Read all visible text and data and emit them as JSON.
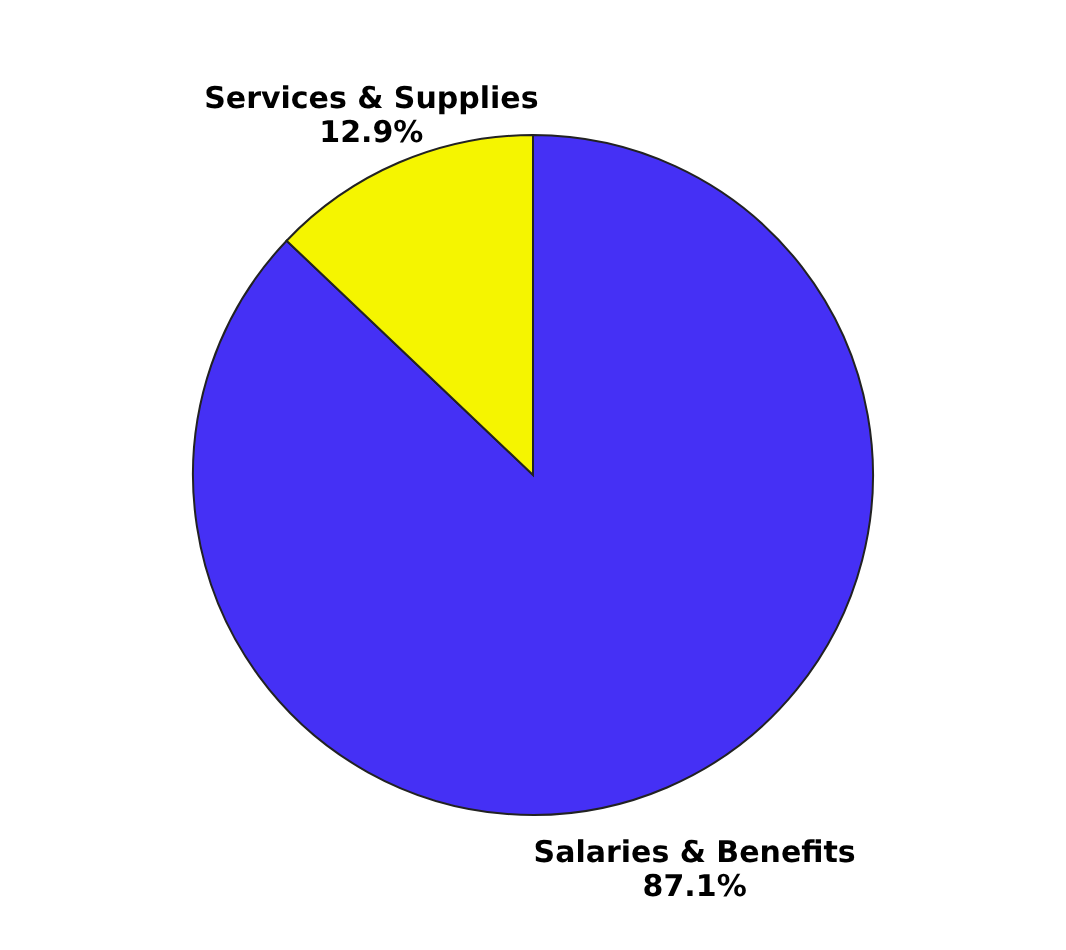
{
  "chart_data": {
    "type": "pie",
    "categories": [
      "Salaries & Benefits",
      "Services & Supplies"
    ],
    "values": [
      87.1,
      12.9
    ],
    "colors": [
      "#4530f5",
      "#f5f500"
    ],
    "value_labels": [
      "87.1%",
      "12.9%"
    ]
  }
}
